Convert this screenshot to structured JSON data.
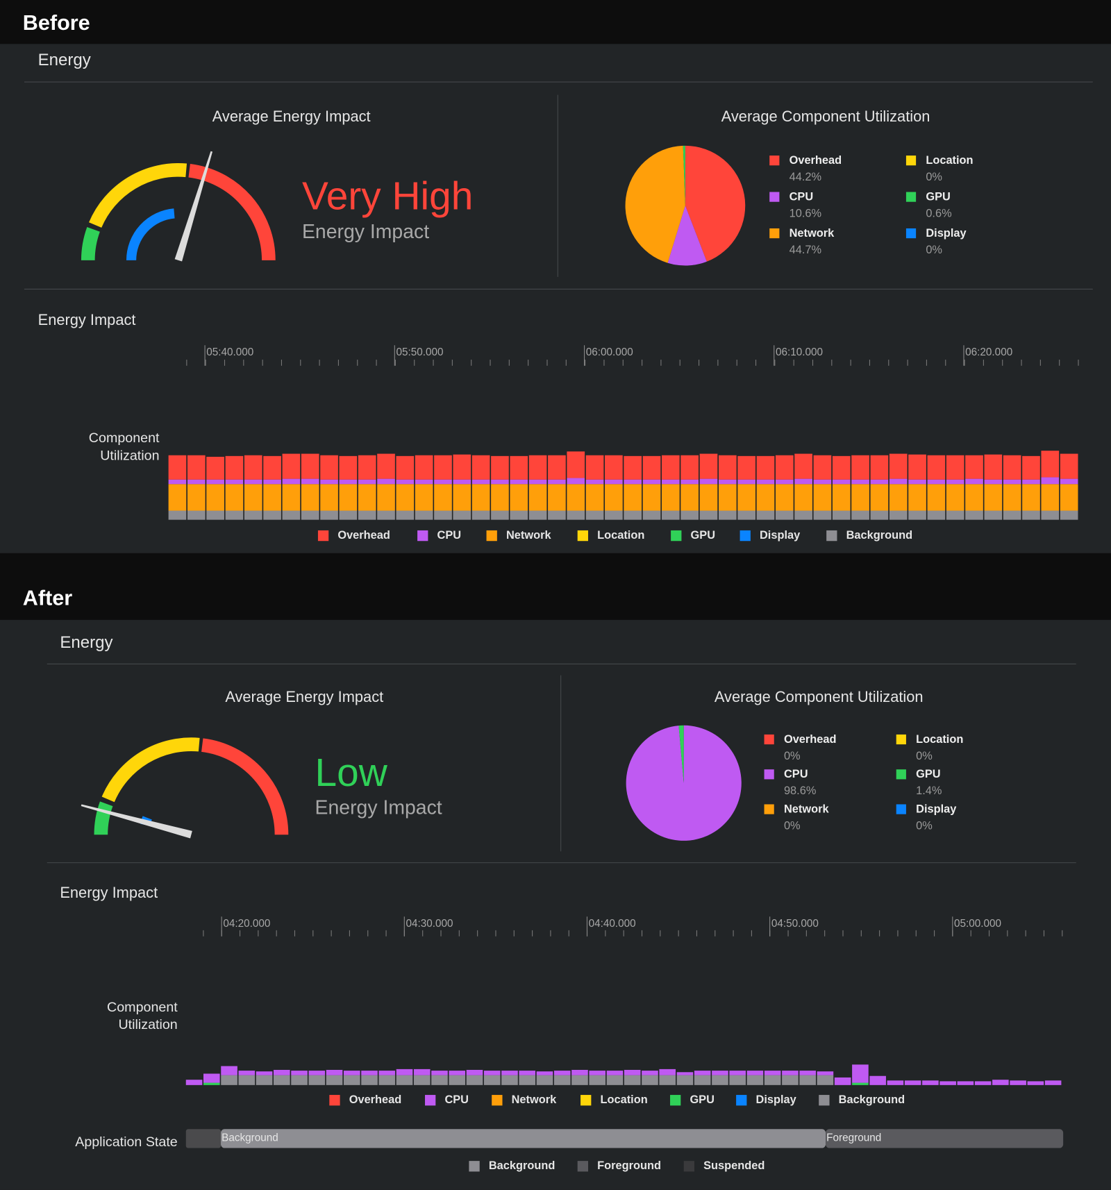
{
  "sections": [
    {
      "heading": "Before",
      "panel_title": "Energy",
      "gauge": {
        "title": "Average Energy Impact",
        "rating": "Very High",
        "rating_color": "#ff453a",
        "subtitle": "Energy Impact"
      },
      "pie": {
        "type": "pie",
        "title": "Average Component Utilization",
        "categories": [
          "Overhead",
          "CPU",
          "Network",
          "Location",
          "GPU",
          "Display"
        ],
        "colors": [
          "#ff453a",
          "#bf5af2",
          "#ff9f0a",
          "#ffd60a",
          "#30d158",
          "#0a84ff"
        ],
        "values": [
          44.2,
          10.6,
          44.7,
          0,
          0.6,
          0
        ],
        "value_labels": [
          "44.2%",
          "10.6%",
          "44.7%",
          "0%",
          "0.6%",
          "0%"
        ]
      },
      "timeline": {
        "title": "Energy Impact",
        "time_labels": [
          "05:40.000",
          "05:50.000",
          "06:00.000",
          "06:10.000",
          "06:20.000"
        ]
      },
      "components": {
        "type": "bar",
        "label": "Component Utilization",
        "series": [
          {
            "name": "Overhead",
            "color": "#ff453a",
            "values": [
              32,
              32,
              30,
              31,
              32,
              31,
              33,
              33,
              32,
              31,
              32,
              33,
              31,
              32,
              32,
              33,
              32,
              31,
              31,
              32,
              32,
              35,
              32,
              32,
              31,
              31,
              32,
              32,
              33,
              32,
              31,
              31,
              32,
              33,
              32,
              31,
              32,
              32,
              33,
              33,
              32,
              32,
              31,
              33,
              32,
              31,
              35,
              33
            ]
          },
          {
            "name": "CPU",
            "color": "#bf5af2",
            "values": [
              6,
              6,
              6,
              6,
              6,
              6,
              7,
              7,
              6,
              6,
              6,
              7,
              6,
              6,
              6,
              6,
              6,
              6,
              6,
              6,
              6,
              8,
              6,
              6,
              6,
              6,
              6,
              6,
              7,
              6,
              6,
              6,
              6,
              7,
              6,
              6,
              6,
              6,
              7,
              6,
              6,
              6,
              7,
              6,
              6,
              6,
              9,
              7
            ]
          },
          {
            "name": "Network",
            "color": "#ff9f0a",
            "values": [
              35,
              35,
              35,
              35,
              35,
              35,
              35,
              35,
              35,
              35,
              35,
              35,
              35,
              35,
              35,
              35,
              35,
              35,
              35,
              35,
              35,
              35,
              35,
              35,
              35,
              35,
              35,
              35,
              35,
              35,
              35,
              35,
              35,
              35,
              35,
              35,
              35,
              35,
              35,
              35,
              35,
              35,
              35,
              35,
              35,
              35,
              35,
              35
            ]
          },
          {
            "name": "Location",
            "color": "#ffd60a"
          },
          {
            "name": "GPU",
            "color": "#30d158"
          },
          {
            "name": "Display",
            "color": "#0a84ff"
          },
          {
            "name": "Background",
            "color": "#8e8e93",
            "values": [
              12,
              12,
              12,
              12,
              12,
              12,
              12,
              12,
              12,
              12,
              12,
              12,
              12,
              12,
              12,
              12,
              12,
              12,
              12,
              12,
              12,
              12,
              12,
              12,
              12,
              12,
              12,
              12,
              12,
              12,
              12,
              12,
              12,
              12,
              12,
              12,
              12,
              12,
              12,
              12,
              12,
              12,
              12,
              12,
              12,
              12,
              12,
              12
            ]
          }
        ]
      }
    },
    {
      "heading": "After",
      "panel_title": "Energy",
      "gauge": {
        "title": "Average Energy Impact",
        "rating": "Low",
        "rating_color": "#30d158",
        "subtitle": "Energy Impact"
      },
      "pie": {
        "type": "pie",
        "title": "Average Component Utilization",
        "categories": [
          "Overhead",
          "CPU",
          "Network",
          "Location",
          "GPU",
          "Display"
        ],
        "colors": [
          "#ff453a",
          "#bf5af2",
          "#ff9f0a",
          "#ffd60a",
          "#30d158",
          "#0a84ff"
        ],
        "values": [
          0,
          98.6,
          0,
          0,
          1.4,
          0
        ],
        "value_labels": [
          "0%",
          "98.6%",
          "0%",
          "0%",
          "1.4%",
          "0%"
        ]
      },
      "timeline": {
        "title": "Energy Impact",
        "time_labels": [
          "04:20.000",
          "04:30.000",
          "04:40.000",
          "04:50.000",
          "05:00.000"
        ]
      },
      "components": {
        "type": "bar",
        "label": "Component Utilization",
        "series": [
          {
            "name": "Overhead",
            "color": "#ff453a"
          },
          {
            "name": "CPU",
            "color": "#bf5af2",
            "values": [
              7,
              12,
              12,
              6,
              5,
              7,
              6,
              6,
              7,
              6,
              6,
              6,
              8,
              8,
              6,
              6,
              7,
              6,
              6,
              6,
              5,
              6,
              7,
              6,
              6,
              7,
              6,
              8,
              4,
              6,
              6,
              6,
              6,
              6,
              6,
              6,
              5,
              10,
              24,
              12,
              6,
              6,
              6,
              5,
              5,
              5,
              7,
              6,
              5,
              6
            ]
          },
          {
            "name": "Network",
            "color": "#ff9f0a"
          },
          {
            "name": "Location",
            "color": "#ffd60a"
          },
          {
            "name": "GPU",
            "color": "#30d158",
            "values": [
              0,
              3,
              0,
              0,
              0,
              0,
              0,
              0,
              0,
              0,
              0,
              0,
              0,
              0,
              0,
              0,
              0,
              0,
              0,
              0,
              0,
              0,
              0,
              0,
              0,
              0,
              0,
              0,
              0,
              0,
              0,
              0,
              0,
              0,
              0,
              0,
              0,
              0,
              3,
              0,
              0,
              0,
              0,
              0,
              0,
              0,
              0,
              0,
              0,
              0
            ]
          },
          {
            "name": "Display",
            "color": "#0a84ff"
          },
          {
            "name": "Background",
            "color": "#8e8e93",
            "values": [
              0,
              0,
              13,
              13,
              13,
              13,
              13,
              13,
              13,
              13,
              13,
              13,
              13,
              13,
              13,
              13,
              13,
              13,
              13,
              13,
              13,
              13,
              13,
              13,
              13,
              13,
              13,
              13,
              13,
              13,
              13,
              13,
              13,
              13,
              13,
              13,
              13,
              0,
              0,
              0,
              0,
              0,
              0,
              0,
              0,
              0,
              0,
              0,
              0,
              0
            ]
          }
        ]
      },
      "app_state": {
        "label": "Application State",
        "segments": [
          "Background",
          "Foreground"
        ],
        "legend": [
          {
            "name": "Background",
            "color": "#8e8e93"
          },
          {
            "name": "Foreground",
            "color": "#5a5a5e"
          },
          {
            "name": "Suspended",
            "color": "#3a3a3c"
          }
        ]
      }
    }
  ]
}
